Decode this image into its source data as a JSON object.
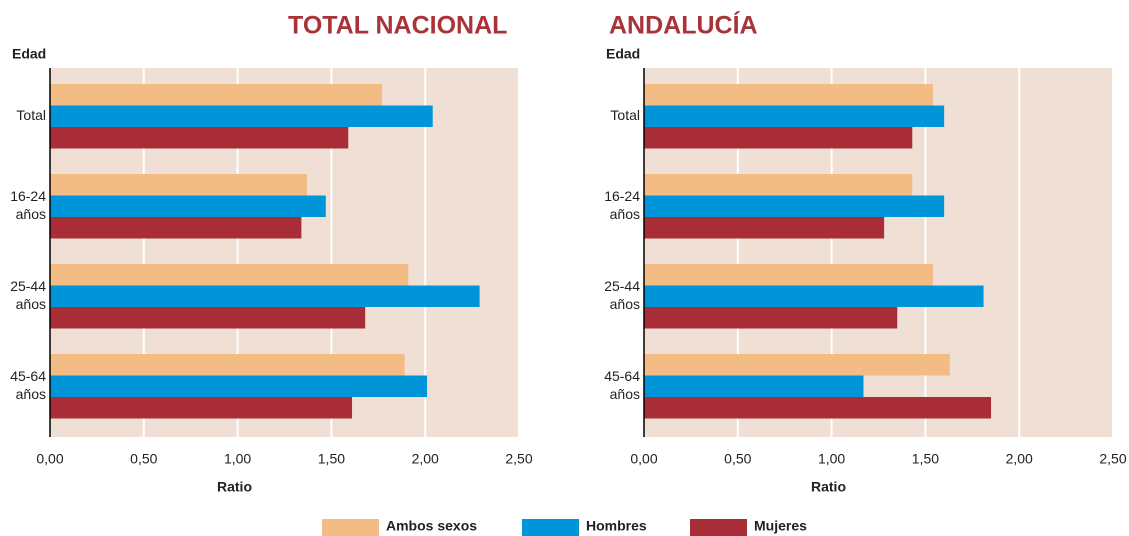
{
  "legend": [
    {
      "name": "Ambos sexos",
      "color": "#f2bc84"
    },
    {
      "name": "Hombres",
      "color": "#0095d9"
    },
    {
      "name": "Mujeres",
      "color": "#a82d36"
    }
  ],
  "chart_data": [
    {
      "type": "bar",
      "orientation": "horizontal",
      "title": "TOTAL NACIONAL",
      "ylabel": "Edad",
      "xlabel": "Ratio",
      "categories": [
        [
          "Total"
        ],
        [
          "16-24",
          "años"
        ],
        [
          "25-44",
          "años"
        ],
        [
          "45-64",
          "años"
        ]
      ],
      "series": [
        {
          "values": [
            1.77,
            1.37,
            1.91,
            1.89
          ]
        },
        {
          "values": [
            2.04,
            1.47,
            2.29,
            2.01
          ]
        },
        {
          "values": [
            1.59,
            1.34,
            1.68,
            1.61
          ]
        }
      ],
      "xlim": [
        0,
        2.5
      ],
      "xticks": [
        {
          "value": 0,
          "label": "0,00"
        },
        {
          "value": 0.5,
          "label": "0,50"
        },
        {
          "value": 1,
          "label": "1,00"
        },
        {
          "value": 1.5,
          "label": "1,50"
        },
        {
          "value": 2,
          "label": "2,00"
        },
        {
          "value": 2.5,
          "label": "2,50"
        }
      ],
      "grid": true
    },
    {
      "type": "bar",
      "orientation": "horizontal",
      "title": "ANDALUCÍA",
      "ylabel": "Edad",
      "xlabel": "Ratio",
      "categories": [
        [
          "Total"
        ],
        [
          "16-24",
          "años"
        ],
        [
          "25-44",
          "años"
        ],
        [
          "45-64",
          "años"
        ]
      ],
      "series": [
        {
          "values": [
            1.54,
            1.43,
            1.54,
            1.63
          ]
        },
        {
          "values": [
            1.6,
            1.6,
            1.81,
            1.17
          ]
        },
        {
          "values": [
            1.43,
            1.28,
            1.35,
            1.85
          ]
        }
      ],
      "xlim": [
        0,
        2.5
      ],
      "xticks": [
        {
          "value": 0,
          "label": "0,00"
        },
        {
          "value": 0.5,
          "label": "0,50"
        },
        {
          "value": 1,
          "label": "1,00"
        },
        {
          "value": 1.5,
          "label": "1,50"
        },
        {
          "value": 2,
          "label": "2,00"
        },
        {
          "value": 2.5,
          "label": "2,50"
        }
      ],
      "grid": true
    }
  ]
}
